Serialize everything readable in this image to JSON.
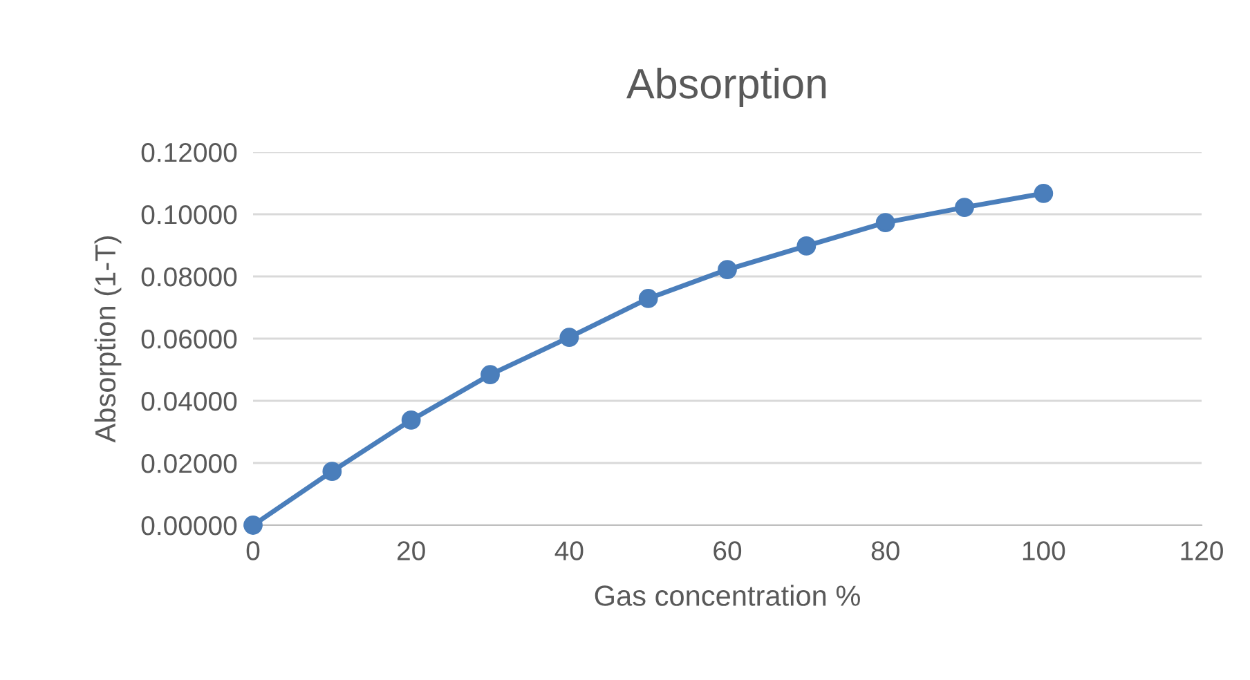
{
  "chart_data": {
    "type": "line",
    "title": "Absorption",
    "xlabel": "Gas concentration %",
    "ylabel": "Absorption (1-T)",
    "x": [
      0,
      10,
      20,
      30,
      40,
      50,
      60,
      70,
      80,
      90,
      100
    ],
    "series": [
      {
        "color": "#4a7ebb",
        "values": [
          0,
          0.0173,
          0.0338,
          0.0484,
          0.0604,
          0.0729,
          0.0822,
          0.0898,
          0.0973,
          0.1022,
          0.1067
        ]
      }
    ],
    "xlim": [
      0,
      120
    ],
    "xticks": [
      0,
      20,
      40,
      60,
      80,
      100,
      120
    ],
    "ylim": [
      0,
      0.12
    ],
    "yticks": [
      {
        "value": 0,
        "label": "0.00000"
      },
      {
        "value": 0.02,
        "label": "0.02000"
      },
      {
        "value": 0.04,
        "label": "0.04000"
      },
      {
        "value": 0.06,
        "label": "0.06000"
      },
      {
        "value": 0.08,
        "label": "0.08000"
      },
      {
        "value": 0.1,
        "label": "0.10000"
      },
      {
        "value": 0.12,
        "label": "0.12000"
      }
    ],
    "grid": "y",
    "marker": "circle",
    "line_style": "solid"
  }
}
